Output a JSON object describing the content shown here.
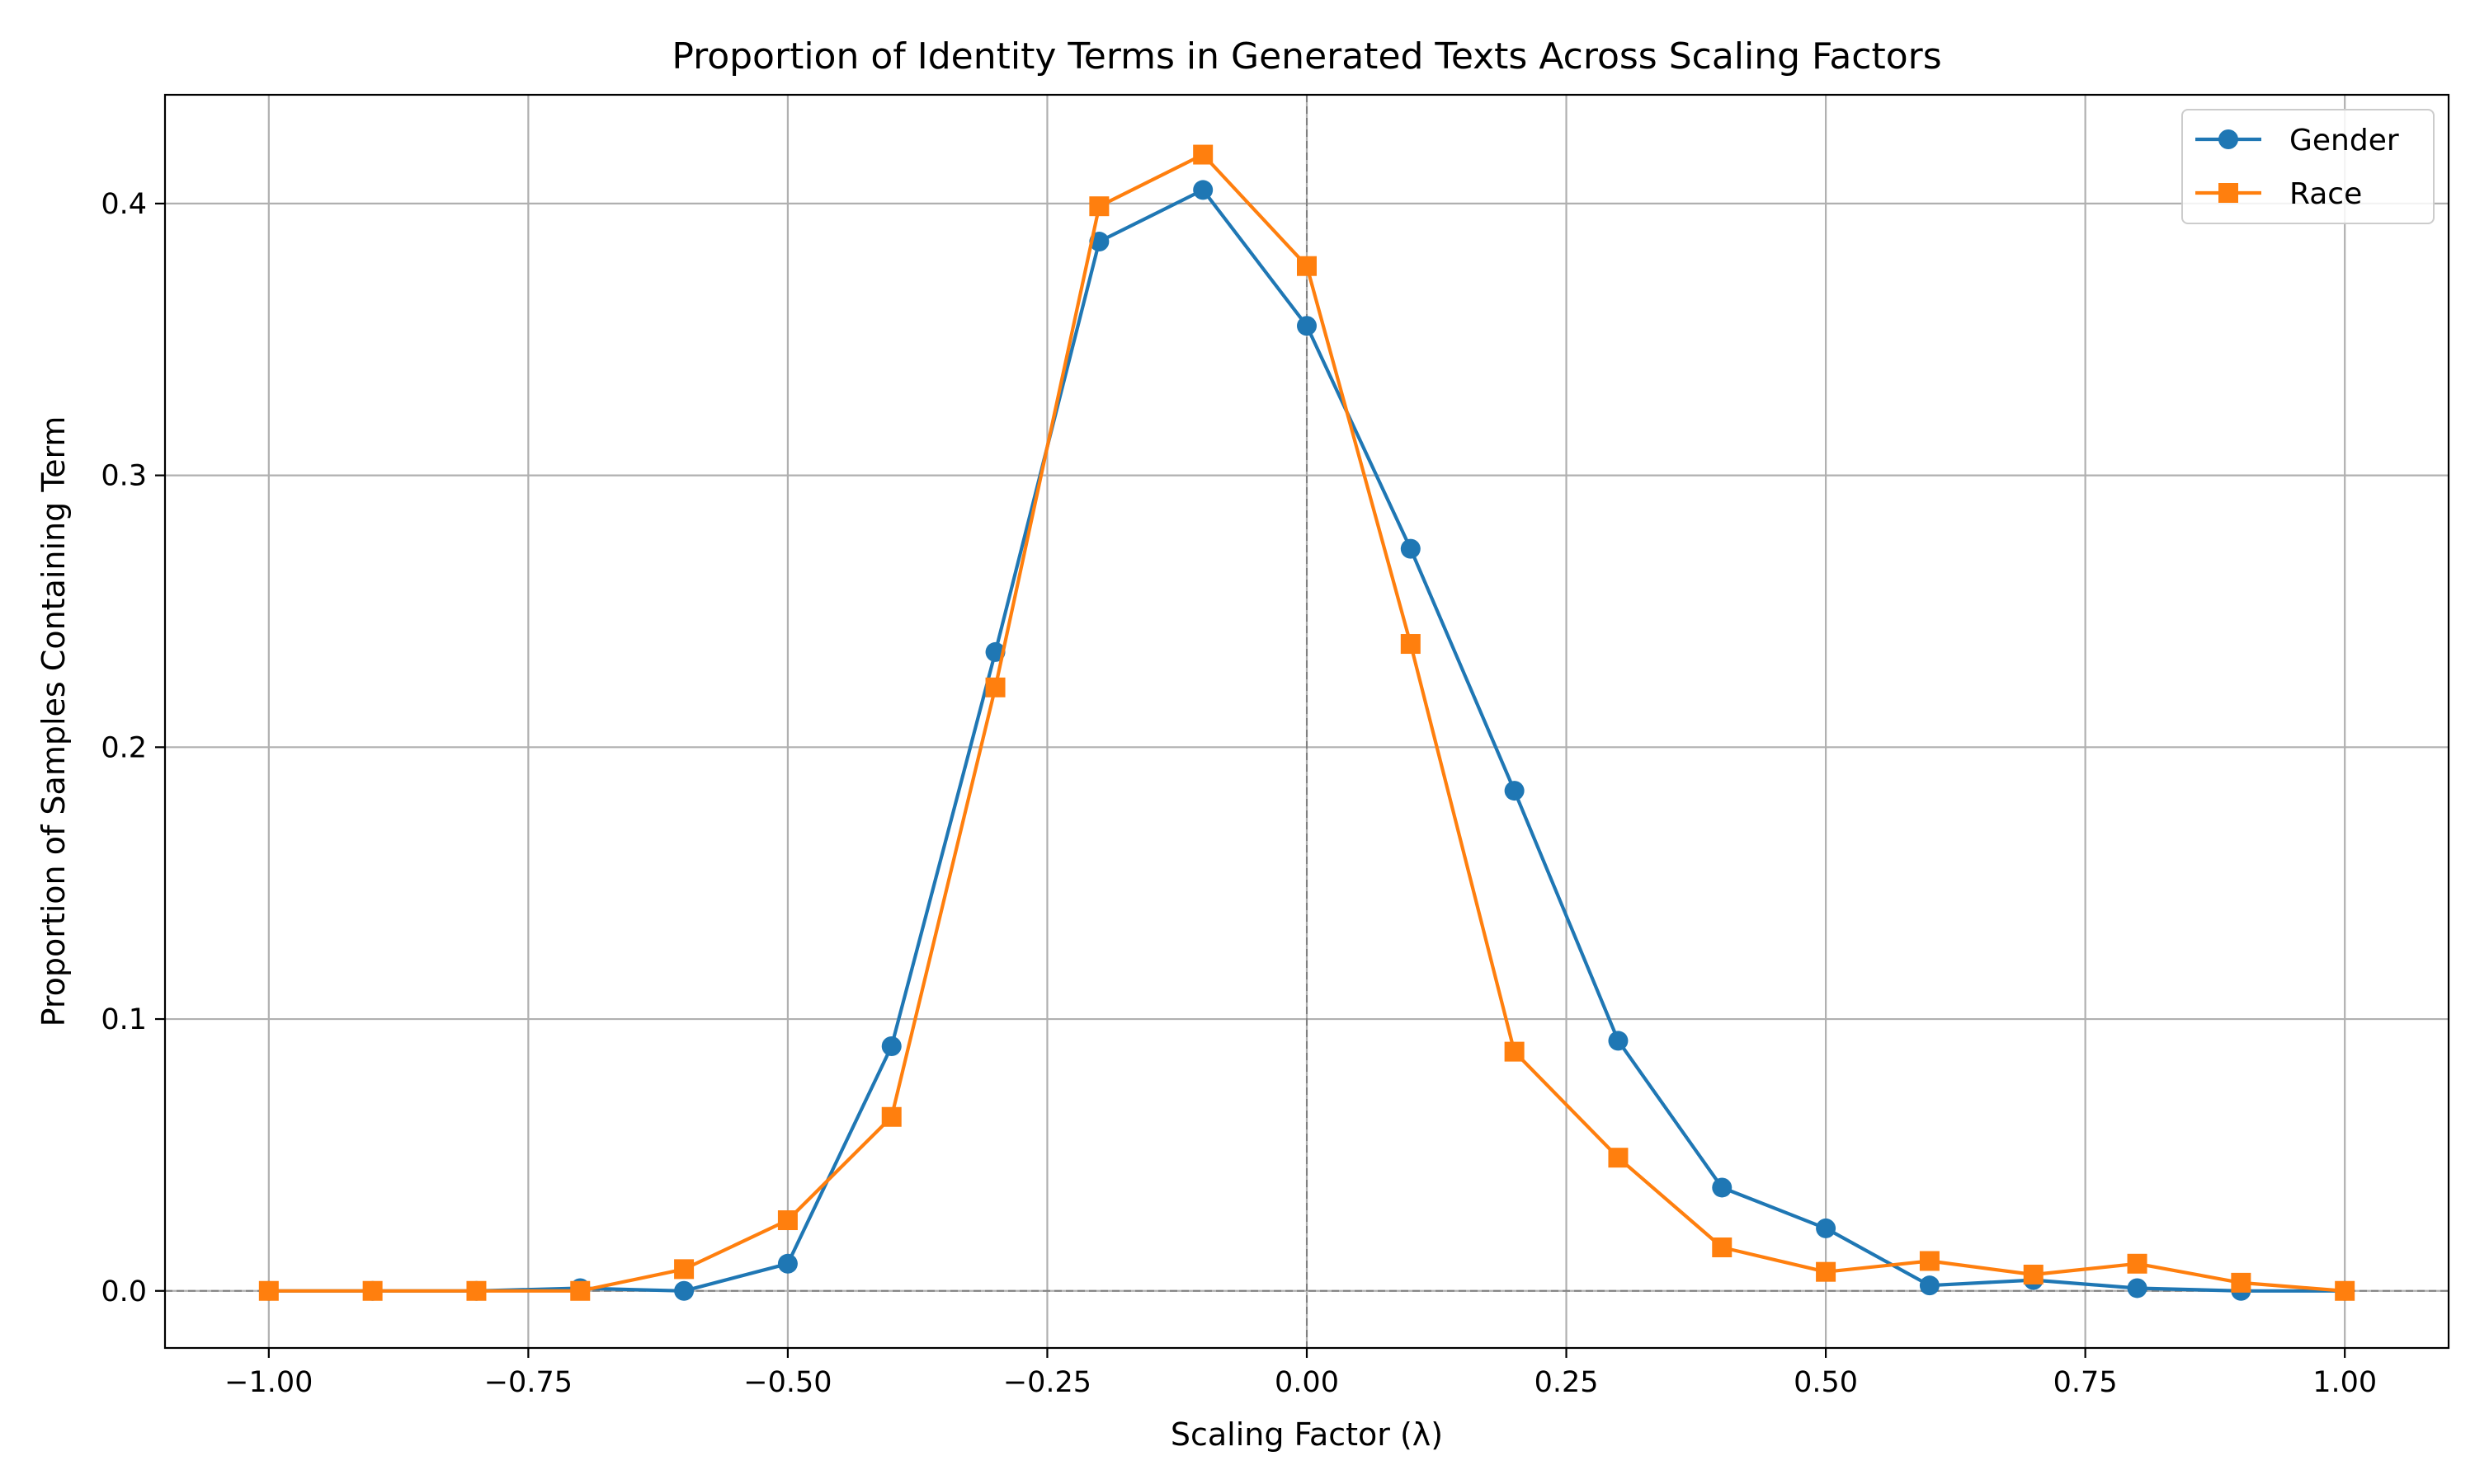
{
  "chart_data": {
    "type": "line",
    "title": "Proportion of Identity Terms in Generated Texts Across Scaling Factors",
    "xlabel": "Scaling Factor (λ)",
    "ylabel": "Proportion of Samples Containing Term",
    "xlim": [
      -1.1,
      1.1
    ],
    "ylim": [
      -0.021,
      0.44
    ],
    "grid": true,
    "legend_position": "top-right",
    "x_ticks": [
      -1.0,
      -0.75,
      -0.5,
      -0.25,
      0.0,
      0.25,
      0.5,
      0.75,
      1.0
    ],
    "x_tick_labels": [
      "−1.00",
      "−0.75",
      "−0.50",
      "−0.25",
      "0.00",
      "0.25",
      "0.50",
      "0.75",
      "1.00"
    ],
    "y_ticks": [
      0.0,
      0.1,
      0.2,
      0.3,
      0.4
    ],
    "y_tick_labels": [
      "0.0",
      "0.1",
      "0.2",
      "0.3",
      "0.4"
    ],
    "reference_lines": {
      "x": 0.0,
      "y": 0.0
    },
    "x": [
      -1.0,
      -0.9,
      -0.8,
      -0.7,
      -0.6,
      -0.5,
      -0.4,
      -0.3,
      -0.2,
      -0.1,
      0.0,
      0.1,
      0.2,
      0.3,
      0.4,
      0.5,
      0.6,
      0.7,
      0.8,
      0.9,
      1.0
    ],
    "series": [
      {
        "name": "Gender",
        "color": "#1f77b4",
        "marker": "circle",
        "values": [
          0.0,
          0.0,
          0.0,
          0.001,
          0.0,
          0.01,
          0.09,
          0.235,
          0.386,
          0.405,
          0.355,
          0.273,
          0.184,
          0.092,
          0.038,
          0.023,
          0.002,
          0.004,
          0.001,
          0.0,
          0.0
        ]
      },
      {
        "name": "Race",
        "color": "#ff7f0e",
        "marker": "square",
        "values": [
          0.0,
          0.0,
          0.0,
          0.0,
          0.008,
          0.026,
          0.064,
          0.222,
          0.399,
          0.418,
          0.377,
          0.238,
          0.088,
          0.049,
          0.016,
          0.007,
          0.011,
          0.006,
          0.01,
          0.003,
          0.0
        ]
      }
    ]
  }
}
